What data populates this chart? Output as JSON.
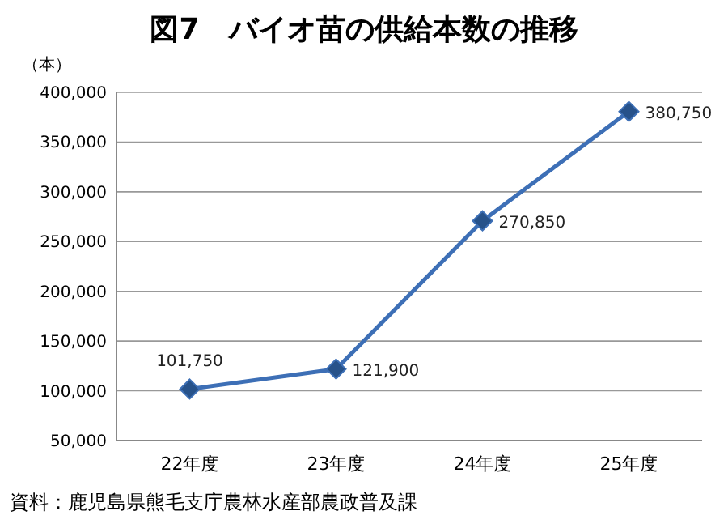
{
  "chart_data": {
    "type": "line",
    "title": "図7　バイオ苗の供給本数の推移",
    "ylabel": "（本）",
    "categories": [
      "22年度",
      "23年度",
      "24年度",
      "25年度"
    ],
    "series": [
      {
        "color": "#3d6fb6",
        "values": [
          101750,
          121900,
          270850,
          380750
        ],
        "value_labels": [
          "101,750",
          "121,900",
          "270,850",
          "380,750"
        ]
      }
    ],
    "ylim": [
      50000,
      400000
    ],
    "yticks": [
      {
        "value": 50000,
        "label": "50,000"
      },
      {
        "value": 100000,
        "label": "100,000"
      },
      {
        "value": 150000,
        "label": "150,000"
      },
      {
        "value": 200000,
        "label": "200,000"
      },
      {
        "value": 250000,
        "label": "250,000"
      },
      {
        "value": 300000,
        "label": "300,000"
      },
      {
        "value": 350000,
        "label": "350,000"
      },
      {
        "value": 400000,
        "label": "400,000"
      }
    ],
    "grid": "y",
    "marker": "diamond",
    "line_style": "solid",
    "annotations": [
      "資料：鹿児島県熊毛支庁農林水産部農政普及課"
    ]
  }
}
